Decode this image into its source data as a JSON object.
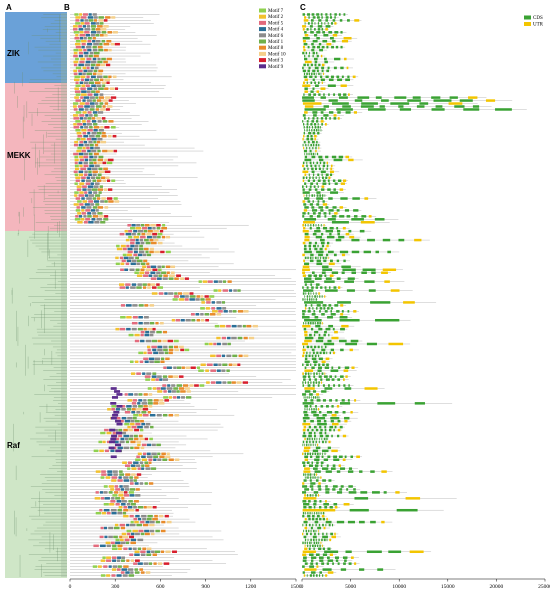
{
  "panels": {
    "a": "A",
    "b": "B",
    "c": "C"
  },
  "groups": [
    {
      "label": "ZIK",
      "color": "#6aa1d8"
    },
    {
      "label": "MEKK",
      "color": "#f4b6bd"
    },
    {
      "label": "Raf",
      "color": "#cfe6c7"
    }
  ],
  "motif_axis": {
    "ticks": [
      "0",
      "300",
      "600",
      "900",
      "1200",
      "1500"
    ],
    "range": [
      0,
      1500
    ]
  },
  "gene_axis": {
    "ticks": [
      "0",
      "5000",
      "10000",
      "15000",
      "20000",
      "25000"
    ],
    "range": [
      0,
      25000
    ]
  },
  "motif_legend": [
    {
      "label": "Motif 7",
      "color": "#8fd14f"
    },
    {
      "label": "Motif 2",
      "color": "#f2c12e"
    },
    {
      "label": "Motif 5",
      "color": "#e36b7d"
    },
    {
      "label": "Motif 4",
      "color": "#2a6f97"
    },
    {
      "label": "Motif 6",
      "color": "#8c8c8c"
    },
    {
      "label": "Motif 1",
      "color": "#6fb04a"
    },
    {
      "label": "Motif 8",
      "color": "#e88b2a"
    },
    {
      "label": "Motif 10",
      "color": "#f5d08a"
    },
    {
      "label": "Motif 3",
      "color": "#d81e2c"
    },
    {
      "label": "Motif 9",
      "color": "#5b2c8c"
    }
  ],
  "gene_legend": [
    {
      "label": "CDS",
      "color": "#3aa233"
    },
    {
      "label": "UTR",
      "color": "#f3c500"
    }
  ]
}
